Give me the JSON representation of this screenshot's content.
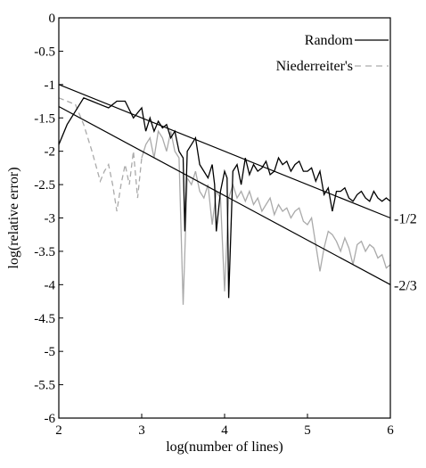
{
  "chart_data": {
    "type": "line",
    "xlabel": "log(number of lines)",
    "ylabel": "log(relative error)",
    "xlim": [
      2,
      6
    ],
    "ylim": [
      -6,
      0
    ],
    "x_ticks": [
      2,
      3,
      4,
      5,
      6
    ],
    "y_ticks": [
      0,
      -0.5,
      -1,
      -1.5,
      -2,
      -2.5,
      -3,
      -3.5,
      -4,
      -4.5,
      -5,
      -5.5,
      -6
    ],
    "x_tick_labels": [
      "2",
      "3",
      "4",
      "5",
      "6"
    ],
    "y_tick_labels": [
      "0",
      "-0.5",
      "-1",
      "-1.5",
      "-2",
      "-2.5",
      "-3",
      "-3.5",
      "-4",
      "-4.5",
      "-5",
      "-5.5",
      "-6"
    ],
    "grid": false,
    "legend_position": "top-right",
    "series": [
      {
        "name": "Random",
        "color": "#000000",
        "dash": "solid",
        "x": [
          2.0,
          2.1,
          2.2,
          2.3,
          2.4,
          2.5,
          2.6,
          2.7,
          2.8,
          2.9,
          3.0,
          3.05,
          3.1,
          3.15,
          3.2,
          3.25,
          3.3,
          3.35,
          3.4,
          3.45,
          3.5,
          3.52,
          3.55,
          3.6,
          3.65,
          3.7,
          3.75,
          3.8,
          3.85,
          3.88,
          3.9,
          3.95,
          4.0,
          4.03,
          4.05,
          4.1,
          4.15,
          4.2,
          4.25,
          4.3,
          4.35,
          4.4,
          4.45,
          4.5,
          4.55,
          4.6,
          4.65,
          4.7,
          4.75,
          4.8,
          4.85,
          4.9,
          4.95,
          5.0,
          5.05,
          5.1,
          5.15,
          5.2,
          5.25,
          5.3,
          5.35,
          5.4,
          5.45,
          5.5,
          5.55,
          5.6,
          5.65,
          5.7,
          5.75,
          5.8,
          5.85,
          5.9,
          5.95,
          6.0
        ],
        "y": [
          -1.9,
          -1.6,
          -1.4,
          -1.2,
          -1.25,
          -1.3,
          -1.35,
          -1.25,
          -1.25,
          -1.5,
          -1.35,
          -1.7,
          -1.5,
          -1.7,
          -1.55,
          -1.65,
          -1.6,
          -1.8,
          -1.7,
          -2.0,
          -2.1,
          -3.2,
          -2.0,
          -1.9,
          -1.8,
          -2.2,
          -2.3,
          -2.4,
          -2.2,
          -2.5,
          -3.2,
          -2.6,
          -2.3,
          -2.4,
          -4.2,
          -2.3,
          -2.2,
          -2.5,
          -2.1,
          -2.35,
          -2.2,
          -2.3,
          -2.25,
          -2.15,
          -2.35,
          -2.3,
          -2.1,
          -2.2,
          -2.15,
          -2.3,
          -2.2,
          -2.15,
          -2.3,
          -2.3,
          -2.25,
          -2.45,
          -2.3,
          -2.65,
          -2.55,
          -2.9,
          -2.6,
          -2.6,
          -2.55,
          -2.7,
          -2.75,
          -2.65,
          -2.6,
          -2.7,
          -2.75,
          -2.6,
          -2.7,
          -2.75,
          -2.7,
          -2.75
        ]
      },
      {
        "name": "Niederreiter's",
        "color": "#aaaaaa",
        "dash": "dashed",
        "x": [
          2.0,
          2.1,
          2.2,
          2.3,
          2.4,
          2.5,
          2.55,
          2.6,
          2.65,
          2.7,
          2.75,
          2.8,
          2.85,
          2.9,
          2.95,
          3.0,
          3.05,
          3.1,
          3.15,
          3.2,
          3.25,
          3.3,
          3.35,
          3.4,
          3.45,
          3.5,
          3.55,
          3.6,
          3.65,
          3.7,
          3.75,
          3.8,
          3.85,
          3.9,
          3.95,
          4.0,
          4.05,
          4.1,
          4.15,
          4.2,
          4.25,
          4.3,
          4.35,
          4.4,
          4.45,
          4.5,
          4.55,
          4.6,
          4.65,
          4.7,
          4.75,
          4.8,
          4.85,
          4.9,
          4.95,
          5.0,
          5.05,
          5.1,
          5.15,
          5.2,
          5.25,
          5.3,
          5.35,
          5.4,
          5.45,
          5.5,
          5.55,
          5.6,
          5.65,
          5.7,
          5.75,
          5.8,
          5.85,
          5.9,
          5.95,
          6.0
        ],
        "y": [
          -1.2,
          -1.25,
          -1.3,
          -1.6,
          -2.0,
          -2.45,
          -2.3,
          -2.2,
          -2.5,
          -2.9,
          -2.5,
          -2.2,
          -2.5,
          -2.0,
          -2.7,
          -2.1,
          -1.9,
          -1.8,
          -2.1,
          -1.7,
          -1.8,
          -2.0,
          -1.7,
          -2.0,
          -2.1,
          -4.3,
          -2.4,
          -2.5,
          -2.3,
          -2.6,
          -2.7,
          -2.5,
          -3.1,
          -2.6,
          -2.7,
          -4.1,
          -2.7,
          -2.5,
          -2.7,
          -2.6,
          -2.75,
          -2.6,
          -2.8,
          -2.7,
          -2.9,
          -2.8,
          -2.7,
          -2.95,
          -2.8,
          -2.9,
          -2.85,
          -3.0,
          -2.9,
          -2.85,
          -3.05,
          -3.1,
          -3.0,
          -3.4,
          -3.8,
          -3.45,
          -3.2,
          -3.25,
          -3.35,
          -3.5,
          -3.3,
          -3.45,
          -3.7,
          -3.4,
          -3.35,
          -3.5,
          -3.4,
          -3.45,
          -3.6,
          -3.55,
          -3.75,
          -3.7
        ]
      }
    ],
    "reference_lines": [
      {
        "label": "-1/2",
        "x": [
          2,
          6
        ],
        "y": [
          -1.0,
          -3.0
        ]
      },
      {
        "label": "-2/3",
        "x": [
          2,
          6
        ],
        "y": [
          -1.33,
          -4.0
        ]
      }
    ]
  },
  "legend": {
    "items": [
      {
        "label": "Random",
        "color": "#000000",
        "dash": "solid"
      },
      {
        "label": "Niederreiter's",
        "color": "#aaaaaa",
        "dash": "dashed"
      }
    ]
  }
}
